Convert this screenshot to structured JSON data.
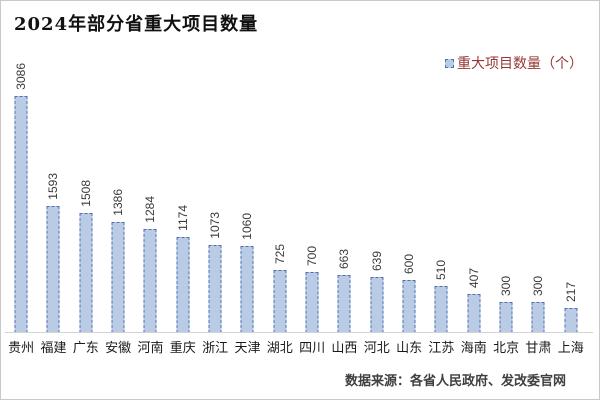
{
  "title": "2024年部分省重大项目数量",
  "legend": {
    "series_label": "重大项目数量（个）"
  },
  "footer": {
    "source": "数据来源：各省人民政府、发改委官网"
  },
  "colors": {
    "bar_fill": "#b9cbe5",
    "bar_border": "#4f6fad",
    "legend_text": "#953735",
    "axis_line": "#d3d3d3",
    "title_text": "#111111",
    "label_text": "#3a3a3a",
    "footer_text": "#3f3f3f"
  },
  "chart_data": {
    "type": "bar",
    "title": "2024年部分省重大项目数量",
    "series_name": "重大项目数量（个）",
    "categories": [
      "贵州",
      "福建",
      "广东",
      "安徽",
      "河南",
      "重庆",
      "浙江",
      "天津",
      "湖北",
      "四川",
      "山西",
      "河北",
      "山东",
      "江苏",
      "海南",
      "北京",
      "甘肃",
      "上海"
    ],
    "values": [
      3086,
      1593,
      1508,
      1386,
      1284,
      1174,
      1073,
      1060,
      725,
      700,
      663,
      639,
      600,
      510,
      407,
      300,
      300,
      217
    ],
    "xlabel": "",
    "ylabel": "",
    "ylim": [
      0,
      3200
    ],
    "grid": false,
    "legend_position": "top-right",
    "data_labels": "rotated-90-above-bars",
    "source_note": "数据来源：各省人民政府、发改委官网"
  }
}
